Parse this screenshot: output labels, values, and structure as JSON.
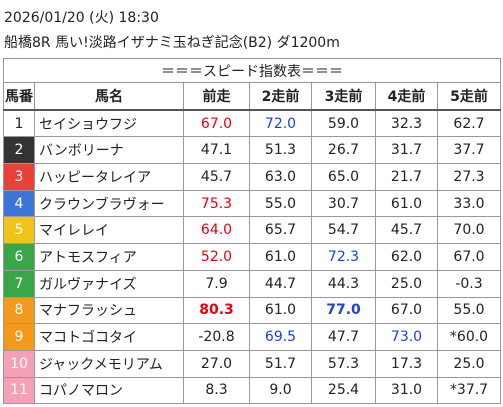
{
  "header": {
    "datetime": "2026/01/20 (火) 18:30",
    "race": "船橋8R 馬い!淡路イザナミ玉ねぎ記念(B2) ダ1200m"
  },
  "table": {
    "title": "＝＝＝スピード指数表＝＝＝",
    "columns": [
      "馬番",
      "馬名",
      "前走",
      "2走前",
      "3走前",
      "4走前",
      "5走前"
    ],
    "rows": [
      {
        "number": "1",
        "frame_bg": "#ffffff",
        "frame_fg": "#222222",
        "name": "セイショウフジ",
        "values": [
          "67.0",
          "72.0",
          "59.0",
          "32.3",
          "62.7"
        ],
        "styles": [
          {
            "color": "#e60012"
          },
          {
            "color": "#1f3fe0"
          },
          null,
          null,
          null
        ]
      },
      {
        "number": "2",
        "frame_bg": "#333333",
        "frame_fg": "#ffffff",
        "name": "バンボリーナ",
        "values": [
          "47.1",
          "51.3",
          "26.7",
          "31.7",
          "37.7"
        ],
        "styles": [
          null,
          null,
          null,
          null,
          null
        ]
      },
      {
        "number": "3",
        "frame_bg": "#e8413a",
        "frame_fg": "#ffffff",
        "name": "ハッピータレイア",
        "values": [
          "45.7",
          "63.0",
          "65.0",
          "21.7",
          "27.3"
        ],
        "styles": [
          null,
          null,
          null,
          null,
          null
        ]
      },
      {
        "number": "4",
        "frame_bg": "#3a74d8",
        "frame_fg": "#ffffff",
        "name": "クラウンブラヴォー",
        "values": [
          "75.3",
          "55.0",
          "30.7",
          "61.0",
          "33.0"
        ],
        "styles": [
          {
            "color": "#e60012"
          },
          null,
          null,
          null,
          null
        ]
      },
      {
        "number": "5",
        "frame_bg": "#f0c419",
        "frame_fg": "#ffffff",
        "name": "マイレレイ",
        "values": [
          "64.0",
          "65.7",
          "54.7",
          "45.7",
          "70.0"
        ],
        "styles": [
          {
            "color": "#e60012"
          },
          null,
          null,
          null,
          null
        ]
      },
      {
        "number": "6",
        "frame_bg": "#3aa64a",
        "frame_fg": "#ffffff",
        "name": "アトモスフィア",
        "values": [
          "52.0",
          "61.0",
          "72.3",
          "62.0",
          "67.0"
        ],
        "styles": [
          {
            "color": "#e60012"
          },
          null,
          {
            "color": "#1f3fe0"
          },
          null,
          null
        ]
      },
      {
        "number": "7",
        "frame_bg": "#3aa64a",
        "frame_fg": "#ffffff",
        "name": "ガルヴァナイズ",
        "values": [
          "7.9",
          "44.7",
          "44.3",
          "25.0",
          "-0.3"
        ],
        "styles": [
          null,
          null,
          null,
          null,
          null
        ]
      },
      {
        "number": "8",
        "frame_bg": "#f39a1e",
        "frame_fg": "#ffffff",
        "name": "マナフラッシュ",
        "values": [
          "80.3",
          "61.0",
          "77.0",
          "67.0",
          "55.0"
        ],
        "styles": [
          {
            "color": "#e60012",
            "bold": true
          },
          null,
          {
            "color": "#1f3fe0",
            "bold": true
          },
          null,
          null
        ]
      },
      {
        "number": "9",
        "frame_bg": "#f39a1e",
        "frame_fg": "#ffffff",
        "name": "マコトゴコタイ",
        "values": [
          "-20.8",
          "69.5",
          "47.7",
          "73.0",
          "*60.0"
        ],
        "styles": [
          null,
          {
            "color": "#1f3fe0"
          },
          null,
          {
            "color": "#1f3fe0"
          },
          null
        ]
      },
      {
        "number": "10",
        "frame_bg": "#f5a0b5",
        "frame_fg": "#ffffff",
        "name": "ジャックメモリアム",
        "values": [
          "27.0",
          "51.7",
          "57.3",
          "17.3",
          "25.0"
        ],
        "styles": [
          null,
          null,
          null,
          null,
          null
        ]
      },
      {
        "number": "11",
        "frame_bg": "#f5a0b5",
        "frame_fg": "#ffffff",
        "name": "コパノマロン",
        "values": [
          "8.3",
          "9.0",
          "25.4",
          "31.0",
          "*37.7"
        ],
        "styles": [
          null,
          null,
          null,
          null,
          null
        ]
      }
    ]
  }
}
